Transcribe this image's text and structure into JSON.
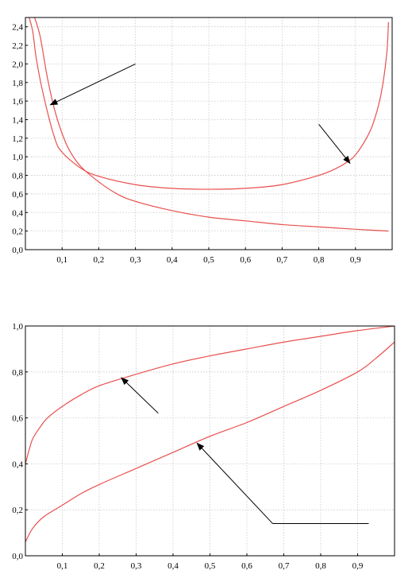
{
  "colors": {
    "curve": "#e8504e",
    "grid": "#c8c8c8",
    "axis": "#000000",
    "arrow": "#000000"
  },
  "chart_data": [
    {
      "type": "line",
      "title": "",
      "xlabel": "",
      "ylabel": "",
      "xlim": [
        0,
        1
      ],
      "ylim": [
        0,
        2.5
      ],
      "grid": true,
      "legend": "none",
      "x_ticks": [
        0.1,
        0.2,
        0.3,
        0.4,
        0.5,
        0.6,
        0.7,
        0.8,
        0.9
      ],
      "x_tick_labels": [
        "0,1",
        "0,2",
        "0,3",
        "0,4",
        "0,5",
        "0,6",
        "0,7",
        "0,8",
        "0,9"
      ],
      "y_ticks": [
        0.0,
        0.2,
        0.4,
        0.6,
        0.8,
        1.0,
        1.2,
        1.4,
        1.6,
        1.8,
        2.0,
        2.2,
        2.4
      ],
      "y_tick_labels": [
        "0,0",
        "0,2",
        "0,4",
        "0,6",
        "0,8",
        "1,0",
        "1,2",
        "1,4",
        "1,6",
        "1,8",
        "2,0",
        "2,2",
        "2,4"
      ],
      "series": [
        {
          "x": [
            0.025,
            0.04,
            0.06,
            0.08,
            0.1,
            0.12,
            0.15,
            0.2,
            0.25,
            0.3,
            0.4,
            0.5,
            0.6,
            0.7,
            0.8,
            0.9,
            0.99
          ],
          "values": [
            2.5,
            2.3,
            1.85,
            1.5,
            1.25,
            1.07,
            0.9,
            0.73,
            0.6,
            0.52,
            0.42,
            0.35,
            0.31,
            0.27,
            0.245,
            0.22,
            0.2
          ]
        },
        {
          "x": [
            0.01,
            0.02,
            0.03,
            0.05,
            0.08,
            0.1,
            0.15,
            0.2,
            0.3,
            0.4,
            0.5,
            0.6,
            0.7,
            0.8,
            0.85,
            0.88,
            0.9,
            0.93,
            0.95,
            0.97,
            0.985,
            0.99
          ],
          "values": [
            2.5,
            2.35,
            2.05,
            1.65,
            1.2,
            1.05,
            0.88,
            0.79,
            0.7,
            0.66,
            0.65,
            0.66,
            0.7,
            0.8,
            0.88,
            0.95,
            1.02,
            1.2,
            1.38,
            1.68,
            2.1,
            2.45
          ]
        }
      ],
      "annotations": [
        {
          "type": "arrow",
          "from": [
            0.3,
            2.0
          ],
          "to": [
            0.068,
            1.56
          ]
        },
        {
          "type": "arrow",
          "from": [
            0.8,
            1.35
          ],
          "to": [
            0.885,
            0.93
          ]
        }
      ]
    },
    {
      "type": "line",
      "title": "",
      "xlabel": "",
      "ylabel": "",
      "xlim": [
        0,
        1
      ],
      "ylim": [
        0,
        1
      ],
      "grid": true,
      "legend": "none",
      "x_ticks": [
        0.1,
        0.2,
        0.3,
        0.4,
        0.5,
        0.6,
        0.7,
        0.8,
        0.9
      ],
      "x_tick_labels": [
        "0,1",
        "0,2",
        "0,3",
        "0,4",
        "0,5",
        "0,6",
        "0,7",
        "0,8",
        "0,9"
      ],
      "y_ticks": [
        0.0,
        0.2,
        0.4,
        0.6,
        0.8,
        1.0
      ],
      "y_tick_labels": [
        "0,0",
        "0,2",
        "0,4",
        "0,6",
        "0,8",
        "1,0"
      ],
      "series": [
        {
          "x": [
            0.0,
            0.01,
            0.02,
            0.04,
            0.06,
            0.1,
            0.15,
            0.2,
            0.3,
            0.4,
            0.5,
            0.6,
            0.7,
            0.8,
            0.9,
            1.0
          ],
          "values": [
            0.4,
            0.46,
            0.51,
            0.56,
            0.6,
            0.65,
            0.7,
            0.74,
            0.79,
            0.835,
            0.87,
            0.9,
            0.93,
            0.955,
            0.98,
            1.0
          ]
        },
        {
          "x": [
            0.0,
            0.02,
            0.05,
            0.1,
            0.15,
            0.2,
            0.3,
            0.4,
            0.5,
            0.6,
            0.7,
            0.8,
            0.9,
            0.95,
            1.0
          ],
          "values": [
            0.06,
            0.12,
            0.17,
            0.22,
            0.27,
            0.31,
            0.38,
            0.45,
            0.52,
            0.58,
            0.65,
            0.72,
            0.8,
            0.86,
            0.93
          ]
        }
      ],
      "annotations": [
        {
          "type": "arrow",
          "from": [
            0.36,
            0.62
          ],
          "to": [
            0.26,
            0.775
          ]
        },
        {
          "type": "arrow",
          "from": [
            0.67,
            0.14
          ],
          "to": [
            0.465,
            0.49
          ],
          "tail_to": [
            0.93,
            0.14
          ]
        }
      ]
    }
  ]
}
